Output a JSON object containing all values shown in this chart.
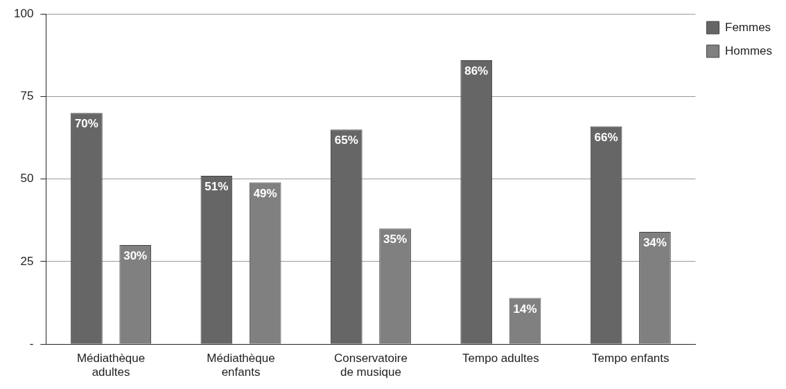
{
  "chart_data": {
    "type": "bar",
    "categories": [
      "Médiathèque adultes",
      "Médiathèque enfants",
      "Conservatoire de musique",
      "Tempo adultes",
      "Tempo enfants"
    ],
    "series": [
      {
        "name": "Femmes",
        "color": "#666666",
        "values": [
          70,
          51,
          65,
          86,
          66
        ],
        "value_labels": [
          "70%",
          "51%",
          "65%",
          "86%",
          "66%"
        ]
      },
      {
        "name": "Hommes",
        "color": "#808080",
        "values": [
          30,
          49,
          35,
          14,
          34
        ],
        "value_labels": [
          "30%",
          "49%",
          "35%",
          "14%",
          "34%"
        ]
      }
    ],
    "ylim": [
      0,
      100
    ],
    "yticks": [
      {
        "value": 0,
        "label": "-"
      },
      25,
      50,
      75,
      100
    ],
    "grid": "y",
    "legend": "top right"
  }
}
